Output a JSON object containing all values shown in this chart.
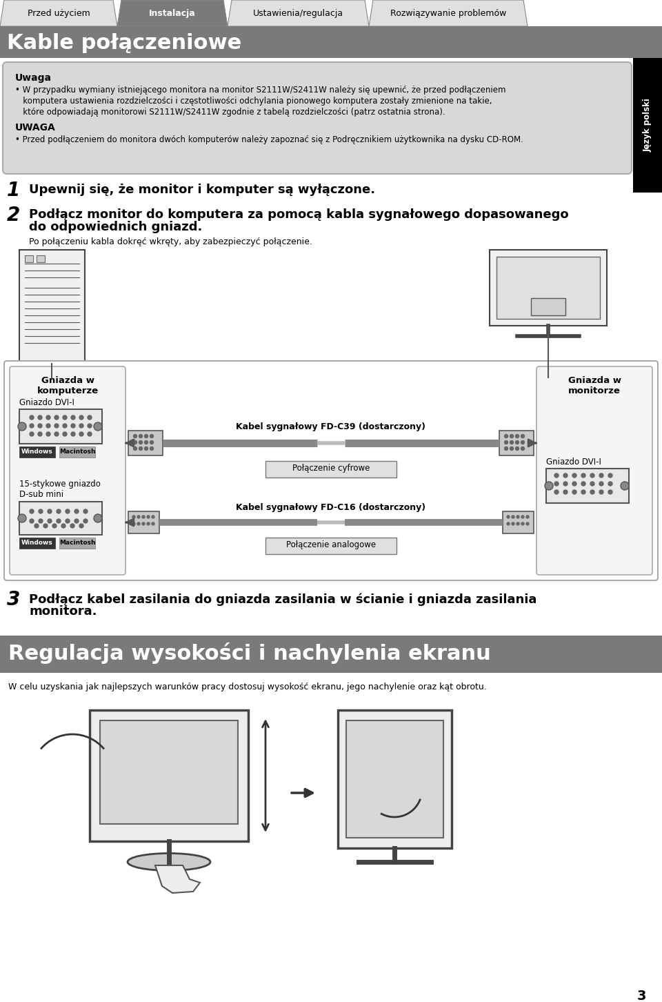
{
  "tab_labels": [
    "Przed użyciem",
    "Instalacja",
    "Ustawienia/regulacja",
    "Rozwiązywanie problemów"
  ],
  "active_tab": 1,
  "page_title": "Kable połączeniowe",
  "header_bg": "#7a7a7a",
  "header_text_color": "#ffffff",
  "body_bg": "#ffffff",
  "uwaga_box_bg": "#d8d8d8",
  "side_label": "Język polski",
  "note_title1": "Uwaga",
  "note_body1_line1": "• W przypadku wymiany istniejącego monitora na monitor S2111W/S2411W należy się upewnić, że przed podłączeniem",
  "note_body1_line2": "   komputera ustawienia rozdzielczości i częstotliwości odchylania pionowego komputera zostały zmienione na takie,",
  "note_body1_line3": "   które odpowiadają monitorowi S2111W/S2411W zgodnie z tabelą rozdzielczości (patrz ostatnia strona).",
  "note_title2": "UWAGA",
  "note_body2": "• Przed podłączeniem do monitora dwóch komputerów należy zapoznać się z Podręcznikiem użytkownika na dysku CD-ROM.",
  "step1_num": "1",
  "step1_text": "Upewnij się, że monitor i komputer są wyłączone.",
  "step2_num": "2",
  "step2_text_line1": "Podłącz monitor do komputera za pomocą kabla sygnałowego dopasowanego",
  "step2_text_line2": "do odpowiednich gniazd.",
  "step2_sub": "Po połączeniu kabla dokręć wkręty, aby zabezpieczyć połączenie.",
  "label_gniazda_komp": "Gniazda w\nkomputerze",
  "label_gniazda_mon": "Gniazda w\nmonitorze",
  "label_gniazdo_dvi": "Gniazdo DVI-I",
  "label_gniazdo_dvi2": "Gniazdo DVI-I",
  "label_15pin": "15-stykowe gniazdo\nD-sub mini",
  "label_windows": "Windows",
  "label_mac": "Macintosh",
  "label_cable1": "Kabel sygnałowy FD-C39 (dostarczony)",
  "label_cable2": "Kabel sygnałowy FD-C16 (dostarczony)",
  "label_digital": "Połączenie cyfrowe",
  "label_analog": "Połączenie analogowe",
  "step3_num": "3",
  "step3_text_line1": "Podłącz kabel zasilania do gniazda zasilania w ścianie i gniazda zasilania",
  "step3_text_line2": "monitora.",
  "section2_title": "Regulacja wysokości i nachylenia ekranu",
  "section2_bg": "#7a7a7a",
  "section2_text_color": "#ffffff",
  "section2_body": "W celu uzyskania jak najlepszych warunków pracy dostosuj wysokość ekranu, jego nachylenie oraz kąt obrotu.",
  "page_number": "3"
}
